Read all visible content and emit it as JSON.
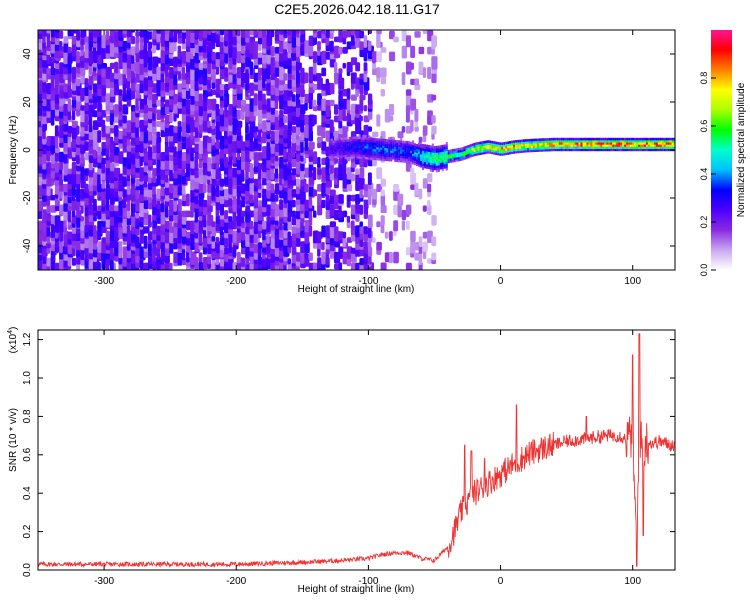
{
  "figure": {
    "title": "C2E5.2026.042.18.11.G17"
  },
  "chart_data": [
    {
      "type": "heatmap",
      "panel": "top",
      "title": "C2E5.2026.042.18.11.G17",
      "xlabel": "Height of straight line (km)",
      "ylabel": "Frequency (Hz)",
      "xlim": [
        -350,
        132
      ],
      "ylim": [
        -50,
        50
      ],
      "xticks": [
        -300,
        -200,
        -100,
        0,
        100
      ],
      "xtick_labels": [
        "-300",
        "-200",
        "-100",
        "0",
        "100"
      ],
      "yticks": [
        -40,
        -20,
        0,
        20,
        40
      ],
      "ytick_labels": [
        "-40",
        "-20",
        "0",
        "20",
        "40"
      ],
      "colorbar": {
        "label": "Normalized spectral amplitude",
        "range": [
          0,
          1
        ],
        "ticks": [
          0.0,
          0.2,
          0.4,
          0.6,
          0.8
        ],
        "tick_labels": [
          "0.0",
          "0.2",
          "0.4",
          "0.6",
          "0.8"
        ],
        "colormap": [
          "#ffffff",
          "#c8a8f0",
          "#8a2be2",
          "#4b00ff",
          "#0000ff",
          "#00bfff",
          "#00ffcc",
          "#00ff00",
          "#aaff00",
          "#ffff00",
          "#ff8000",
          "#ff0000",
          "#ff1493"
        ]
      },
      "ridge": {
        "x": [
          -130,
          -110,
          -90,
          -70,
          -60,
          -50,
          -40,
          -30,
          -20,
          -10,
          0,
          10,
          20,
          40,
          60,
          80,
          100,
          132
        ],
        "freq": [
          0,
          1,
          0,
          -1,
          -3,
          -4,
          -3,
          -2,
          0,
          1,
          0,
          1,
          1.5,
          2,
          2,
          2,
          2,
          2
        ],
        "amplitude": [
          0.25,
          0.35,
          0.4,
          0.35,
          0.5,
          0.6,
          0.6,
          0.6,
          0.75,
          0.8,
          0.85,
          0.85,
          0.8,
          0.85,
          0.9,
          0.95,
          0.9,
          0.95
        ]
      },
      "noise_region_x": [
        -350,
        -55
      ],
      "noise_amplitude": [
        0.1,
        0.3
      ]
    },
    {
      "type": "line",
      "panel": "bottom",
      "xlabel": "Height of straight line (km)",
      "ylabel": "SNR (10 * v/v)",
      "y_scale_label": "(x10",
      "y_scale_exp": "4",
      "y_scale_close": ")",
      "xlim": [
        -350,
        132
      ],
      "ylim": [
        0,
        1.25
      ],
      "xticks": [
        -300,
        -200,
        -100,
        0,
        100
      ],
      "xtick_labels": [
        "-300",
        "-200",
        "-100",
        "0",
        "100"
      ],
      "yticks": [
        0.0,
        0.2,
        0.4,
        0.6,
        0.8,
        1.0,
        1.2
      ],
      "ytick_labels": [
        "0.0",
        "0.2",
        "0.4",
        "0.6",
        "0.8",
        "1.0",
        "1.2"
      ],
      "series": [
        {
          "color": "#ee3333",
          "x": [
            -350,
            -300,
            -250,
            -200,
            -150,
            -120,
            -100,
            -90,
            -80,
            -70,
            -60,
            -50,
            -40,
            -35,
            -30,
            -25,
            -20,
            -10,
            0,
            10,
            20,
            30,
            40,
            50,
            60,
            70,
            80,
            90,
            95,
            100,
            103,
            105,
            108,
            110,
            115,
            120,
            125,
            132
          ],
          "y": [
            0.03,
            0.03,
            0.03,
            0.03,
            0.04,
            0.05,
            0.06,
            0.08,
            0.09,
            0.09,
            0.06,
            0.05,
            0.12,
            0.2,
            0.3,
            0.35,
            0.4,
            0.45,
            0.5,
            0.55,
            0.6,
            0.63,
            0.65,
            0.67,
            0.68,
            0.69,
            0.7,
            0.7,
            0.68,
            0.7,
            0.1,
            0.72,
            0.6,
            0.67,
            0.66,
            0.67,
            0.66,
            0.65
          ]
        }
      ],
      "spikes": [
        {
          "x": -27,
          "y": 0.65
        },
        {
          "x": -22,
          "y": 0.62
        },
        {
          "x": -12,
          "y": 0.58
        },
        {
          "x": 12,
          "y": 0.86
        },
        {
          "x": 65,
          "y": 0.8
        },
        {
          "x": 100,
          "y": 1.12
        },
        {
          "x": 103,
          "y": 0.02
        },
        {
          "x": 105,
          "y": 1.23
        },
        {
          "x": 108,
          "y": 0.18
        }
      ]
    }
  ]
}
